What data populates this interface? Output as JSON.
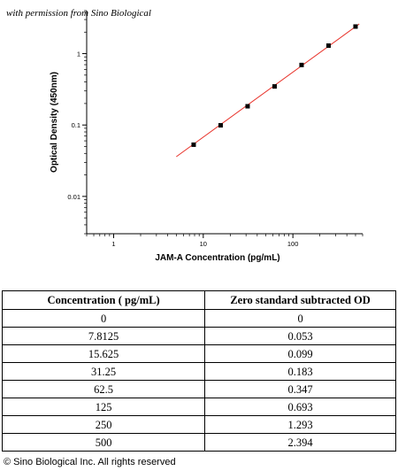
{
  "watermark": "with permission from Sino Biological",
  "chart_data": {
    "type": "scatter",
    "xlabel": "JAM-A Concentration (pg/mL)",
    "ylabel": "Optical Density (450nm)",
    "x_scale": "log",
    "y_scale": "log",
    "xlim": [
      0.5,
      600
    ],
    "ylim": [
      0.003,
      4
    ],
    "x_ticks": [
      {
        "value": 1,
        "label": "1"
      },
      {
        "value": 10,
        "label": "10"
      },
      {
        "value": 100,
        "label": "100"
      }
    ],
    "y_ticks": [
      {
        "value": 0.01,
        "label": "0.01"
      },
      {
        "value": 0.1,
        "label": "0.1"
      },
      {
        "value": 1,
        "label": "1"
      }
    ],
    "series": [
      {
        "x": [
          7.8125,
          15.625,
          31.25,
          62.5,
          125,
          250,
          500
        ],
        "y": [
          0.053,
          0.099,
          0.183,
          0.347,
          0.693,
          1.293,
          2.394
        ],
        "marker_color": "#000000"
      }
    ],
    "fit_line": {
      "x": [
        5,
        550
      ],
      "y": [
        0.036,
        2.6
      ],
      "color": "#e8322a"
    },
    "grid": false
  },
  "table": {
    "headers": [
      "Concentration ( pg/mL)",
      "Zero standard subtracted OD"
    ],
    "rows": [
      [
        "0",
        "0"
      ],
      [
        "7.8125",
        "0.053"
      ],
      [
        "15.625",
        "0.099"
      ],
      [
        "31.25",
        "0.183"
      ],
      [
        "62.5",
        "0.347"
      ],
      [
        "125",
        "0.693"
      ],
      [
        "250",
        "1.293"
      ],
      [
        "500",
        "2.394"
      ]
    ]
  },
  "copyright": "© Sino Biological Inc. All rights reserved"
}
